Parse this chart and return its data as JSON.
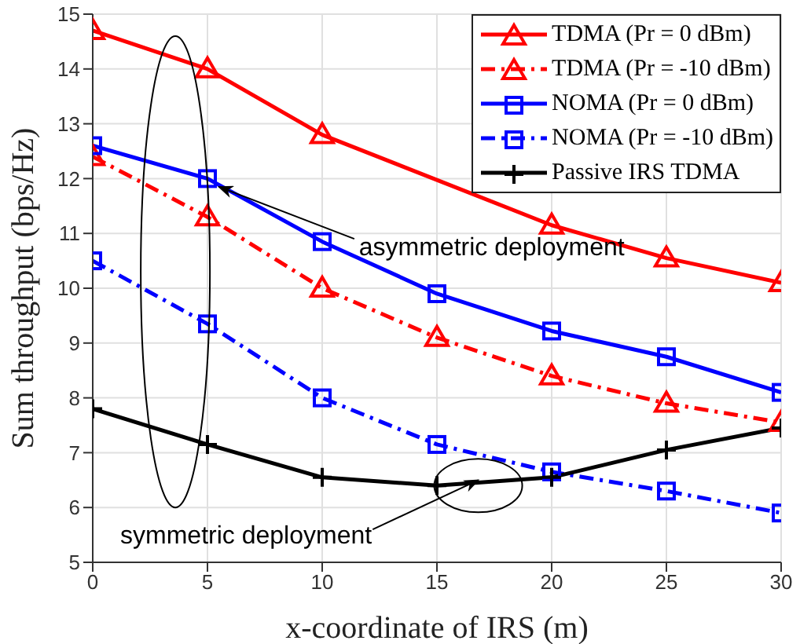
{
  "chart_data": {
    "type": "line",
    "xlabel": "x-coordinate of IRS (m)",
    "ylabel": "Sum throughput (bps/Hz)",
    "x": [
      0,
      5,
      10,
      15,
      20,
      25,
      30
    ],
    "xlim": [
      0,
      30
    ],
    "xticks": [
      0,
      5,
      10,
      15,
      20,
      25,
      30
    ],
    "ylim": [
      5,
      15
    ],
    "yticks": [
      5,
      6,
      7,
      8,
      9,
      10,
      11,
      12,
      13,
      14,
      15
    ],
    "grid": true,
    "legend": "top right",
    "annotations": [
      {
        "text": "asymmetric deployment",
        "x": 5.5,
        "y": 11.85
      },
      {
        "text": "symmetric deployment",
        "x": 16.8,
        "y": 6.5
      }
    ],
    "series": [
      {
        "name": "TDMA (Pr = 0 dBm)",
        "color": "#ff0000",
        "marker": "triangle",
        "line_style": "solid",
        "values": [
          14.7,
          14.0,
          12.8,
          null,
          11.15,
          10.55,
          10.1
        ]
      },
      {
        "name": "TDMA (Pr = -10 dBm)",
        "color": "#ff0000",
        "marker": "triangle",
        "line_style": "dashed",
        "values": [
          12.4,
          11.3,
          10.0,
          9.1,
          8.4,
          7.9,
          7.55
        ]
      },
      {
        "name": "NOMA (Pr = 0 dBm)",
        "color": "#0000ff",
        "marker": "square",
        "line_style": "solid",
        "values": [
          12.6,
          12.0,
          10.85,
          9.9,
          9.22,
          8.75,
          8.1
        ]
      },
      {
        "name": "NOMA (Pr = -10 dBm)",
        "color": "#0000ff",
        "marker": "square",
        "line_style": "dashed",
        "values": [
          10.5,
          9.35,
          8.0,
          7.15,
          6.65,
          6.3,
          5.9
        ]
      },
      {
        "name": "Passive IRS TDMA",
        "color": "#000000",
        "marker": "cross",
        "line_style": "solid",
        "values": [
          7.8,
          7.15,
          6.55,
          6.4,
          6.55,
          7.05,
          7.45
        ]
      }
    ]
  }
}
